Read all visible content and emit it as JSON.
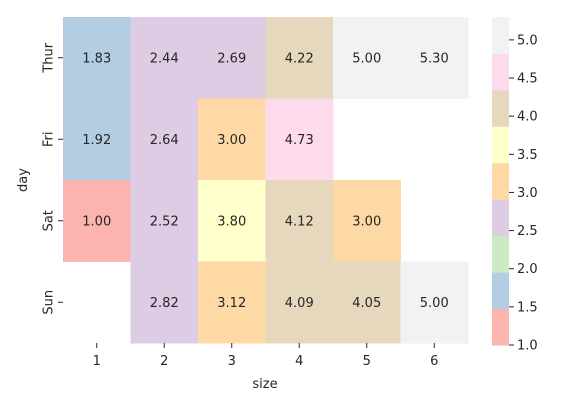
{
  "chart_data": {
    "type": "heatmap",
    "title": "",
    "xlabel": "size",
    "ylabel": "day",
    "x_categories": [
      "1",
      "2",
      "3",
      "4",
      "5",
      "6"
    ],
    "y_categories": [
      "Thur",
      "Fri",
      "Sat",
      "Sun"
    ],
    "values": [
      [
        1.83,
        2.44,
        2.69,
        4.22,
        5.0,
        5.3
      ],
      [
        1.92,
        2.64,
        3.0,
        4.73,
        null,
        null
      ],
      [
        1.0,
        2.52,
        3.8,
        4.12,
        3.0,
        null
      ],
      [
        null,
        2.82,
        3.12,
        4.09,
        4.05,
        5.0
      ]
    ],
    "value_format": "2 decimals",
    "colormap": "Pastel1",
    "colorbar": {
      "range": [
        1.0,
        5.3
      ],
      "ticks": [
        "1.0",
        "1.5",
        "2.0",
        "2.5",
        "3.0",
        "3.5",
        "4.0",
        "4.5",
        "5.0"
      ],
      "colors": [
        "#fbb4ae",
        "#b3cde3",
        "#ccebc5",
        "#decbe4",
        "#fed9a6",
        "#ffffcc",
        "#e5d8bd",
        "#fddaec",
        "#f2f2f2"
      ]
    },
    "missing_cells": "blank",
    "grid": false,
    "legend": "colorbar-right"
  }
}
